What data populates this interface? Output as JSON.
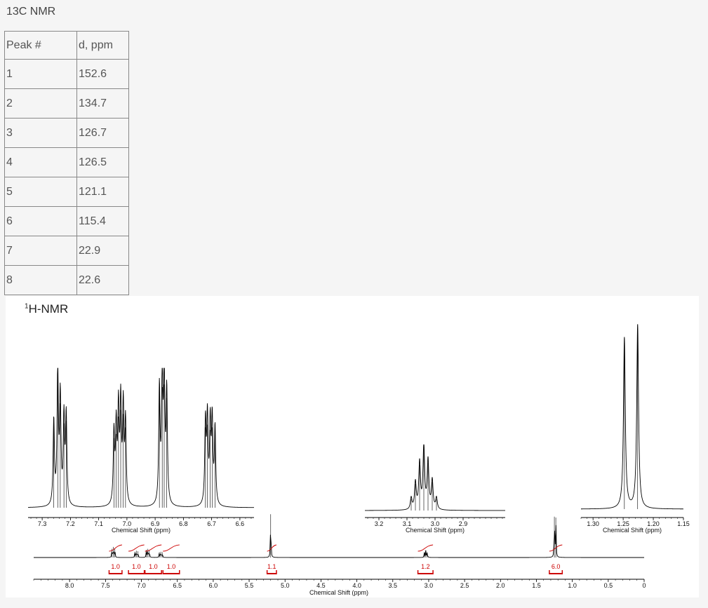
{
  "page": {
    "title": "13C NMR",
    "hnmr_title_sup": "1",
    "hnmr_title_rest": "H-NMR"
  },
  "table": {
    "headers": [
      "Peak #",
      "d, ppm"
    ],
    "rows": [
      [
        "1",
        "152.6"
      ],
      [
        "2",
        "134.7"
      ],
      [
        "3",
        "126.7"
      ],
      [
        "4",
        "126.5"
      ],
      [
        "5",
        "121.1"
      ],
      [
        "6",
        "115.4"
      ],
      [
        "7",
        "22.9"
      ],
      [
        "8",
        "22.6"
      ]
    ]
  },
  "chart_data": [
    {
      "type": "line",
      "name": "main-spectrum",
      "xlabel": "Chemical Shift (ppm)",
      "xlim": [
        8.5,
        0
      ],
      "ticks": [
        "8.0",
        "7.5",
        "7.0",
        "6.5",
        "6.0",
        "5.5",
        "5.0",
        "4.5",
        "4.0",
        "3.5",
        "3.0",
        "2.5",
        "2.0",
        "1.5",
        "1.0",
        "0.5",
        "0"
      ],
      "peaks": [
        {
          "ppm": 7.41,
          "height": 0.18
        },
        {
          "ppm": 7.39,
          "height": 0.22
        },
        {
          "ppm": 7.37,
          "height": 0.18
        },
        {
          "ppm": 7.09,
          "height": 0.12
        },
        {
          "ppm": 7.07,
          "height": 0.14
        },
        {
          "ppm": 7.05,
          "height": 0.13
        },
        {
          "ppm": 6.93,
          "height": 0.16
        },
        {
          "ppm": 6.91,
          "height": 0.18
        },
        {
          "ppm": 6.89,
          "height": 0.15
        },
        {
          "ppm": 6.75,
          "height": 0.11
        },
        {
          "ppm": 6.73,
          "height": 0.12
        },
        {
          "ppm": 6.71,
          "height": 0.11
        },
        {
          "ppm": 5.2,
          "height": 0.9
        },
        {
          "ppm": 3.06,
          "height": 0.1
        },
        {
          "ppm": 3.04,
          "height": 0.15
        },
        {
          "ppm": 3.02,
          "height": 0.11
        },
        {
          "ppm": 1.25,
          "height": 0.85
        },
        {
          "ppm": 1.23,
          "height": 0.83
        }
      ],
      "integrations": [
        {
          "from": 7.45,
          "to": 7.27,
          "label": "1.0"
        },
        {
          "from": 7.18,
          "to": 6.96,
          "label": "1.0"
        },
        {
          "from": 6.95,
          "to": 6.72,
          "label": "1.0"
        },
        {
          "from": 6.7,
          "to": 6.47,
          "label": "1.0"
        },
        {
          "from": 5.25,
          "to": 5.12,
          "label": "1.1"
        },
        {
          "from": 3.15,
          "to": 2.94,
          "label": "1.2"
        },
        {
          "from": 1.32,
          "to": 1.14,
          "label": "6.0"
        }
      ]
    },
    {
      "type": "line",
      "name": "inset-aromatic",
      "xlabel": "Chemical Shift (ppm)",
      "xlim": [
        7.35,
        6.55
      ],
      "ticks": [
        "7.3",
        "7.2",
        "7.1",
        "7.0",
        "6.9",
        "6.8",
        "6.7",
        "6.6"
      ],
      "peaks": [
        {
          "ppm": 7.259,
          "height": 0.62
        },
        {
          "ppm": 7.245,
          "height": 0.99
        },
        {
          "ppm": 7.236,
          "height": 0.78
        },
        {
          "ppm": 7.223,
          "height": 0.63
        },
        {
          "ppm": 7.215,
          "height": 0.65
        },
        {
          "ppm": 7.046,
          "height": 0.52
        },
        {
          "ppm": 7.038,
          "height": 0.55
        },
        {
          "ppm": 7.03,
          "height": 0.68
        },
        {
          "ppm": 7.022,
          "height": 0.73
        },
        {
          "ppm": 7.013,
          "height": 0.7
        },
        {
          "ppm": 7.005,
          "height": 0.6
        },
        {
          "ppm": 6.885,
          "height": 0.85
        },
        {
          "ppm": 6.875,
          "height": 0.9
        },
        {
          "ppm": 6.868,
          "height": 0.92
        },
        {
          "ppm": 6.859,
          "height": 0.82
        },
        {
          "ppm": 6.722,
          "height": 0.6
        },
        {
          "ppm": 6.715,
          "height": 0.62
        },
        {
          "ppm": 6.705,
          "height": 0.58
        },
        {
          "ppm": 6.698,
          "height": 0.6
        },
        {
          "ppm": 6.688,
          "height": 0.56
        }
      ]
    },
    {
      "type": "line",
      "name": "inset-methine",
      "xlabel": "Chemical Shift (ppm)",
      "xlim": [
        3.25,
        2.75
      ],
      "ticks": [
        "3.2",
        "3.1",
        "3.0",
        "2.9"
      ],
      "peaks": [
        {
          "ppm": 3.085,
          "height": 0.18
        },
        {
          "ppm": 3.07,
          "height": 0.42
        },
        {
          "ppm": 3.055,
          "height": 0.72
        },
        {
          "ppm": 3.04,
          "height": 0.98
        },
        {
          "ppm": 3.025,
          "height": 0.75
        },
        {
          "ppm": 3.01,
          "height": 0.45
        },
        {
          "ppm": 2.995,
          "height": 0.18
        }
      ]
    },
    {
      "type": "line",
      "name": "inset-methyl",
      "xlabel": "Chemical Shift (ppm)",
      "xlim": [
        1.32,
        1.15
      ],
      "ticks": [
        "1.30",
        "1.25",
        "1.20",
        "1.15"
      ],
      "peaks": [
        {
          "ppm": 1.248,
          "height": 0.92
        },
        {
          "ppm": 1.226,
          "height": 0.99
        }
      ]
    }
  ]
}
